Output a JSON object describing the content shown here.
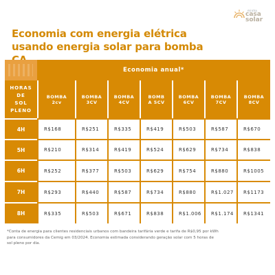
{
  "logo": {
    "small_text": "minha",
    "brand_line1": "casa",
    "brand_line2": "solar",
    "accent_color": "#e8b46b"
  },
  "title": {
    "line1": "Economia com energia elétrica",
    "line2": "usando energia solar para bomba CA",
    "color": "#d48a06"
  },
  "table": {
    "group_header": "Economia anual*",
    "corner_header": [
      "HORAS",
      "DE",
      "SOL",
      "PLENO"
    ],
    "columns": [
      [
        "BOMBA",
        "2cv"
      ],
      [
        "BOMBA",
        "3CV"
      ],
      [
        "BOMBA",
        "4CV"
      ],
      [
        "BOMB",
        "A 5CV"
      ],
      [
        "BOMBA",
        "6CV"
      ],
      [
        "BOMBA",
        "7CV"
      ],
      [
        "BOMBA",
        "8CV"
      ]
    ],
    "rows": [
      {
        "hours": "4H",
        "values": [
          "R$168",
          "R$251",
          "R$335",
          "R$419",
          "R$503",
          "R$587",
          "R$670"
        ]
      },
      {
        "hours": "5H",
        "values": [
          "R$210",
          "R$314",
          "R$419",
          "R$524",
          "R$629",
          "R$734",
          "R$838"
        ]
      },
      {
        "hours": "6H",
        "values": [
          "R$252",
          "R$377",
          "R$503",
          "R$629",
          "R$754",
          "R$880",
          "R$1005"
        ]
      },
      {
        "hours": "7H",
        "values": [
          "R$293",
          "R$440",
          "R$587",
          "R$734",
          "R$880",
          "R$1.027",
          "R$1173"
        ]
      },
      {
        "hours": "8H",
        "values": [
          "R$335",
          "R$503",
          "R$671",
          "R$838",
          "R$1.006",
          "R$1.174",
          "R$1341"
        ]
      }
    ],
    "header_color": "#d88a04"
  },
  "footnote": {
    "line1": "*Conta de energia para clientes residenciais urbanos com bandeira tarifária verde e tarifa de R$0,95 por kWh",
    "line2": "para consumidores da Cemig em 03/2024. Economia estimada considerando geração solar com 5 horas de",
    "line3": "sol pleno por dia."
  }
}
